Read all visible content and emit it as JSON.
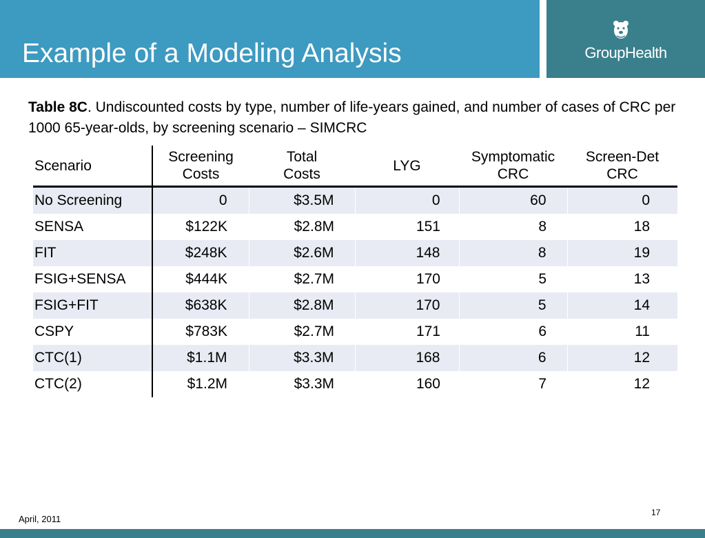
{
  "header": {
    "title": "Example of a Modeling Analysis",
    "logo_text": "GroupHealth",
    "logo_icon": "bear-emblem-icon",
    "colors": {
      "title_bar": "#3d9ac0",
      "logo_bar": "#3a7f8c",
      "row_shade": "#e8ebf3"
    }
  },
  "caption": {
    "bold": "Table 8C",
    "text": ". Undiscounted costs by type, number of life-years gained, and number of cases of CRC per 1000 65-year-olds, by screening scenario – SIMCRC"
  },
  "table": {
    "headers": {
      "scenario": "Scenario",
      "screening_costs": {
        "line1": "Screening",
        "line2": "Costs"
      },
      "total_costs": {
        "line1": "Total",
        "line2": "Costs"
      },
      "lyg": "LYG",
      "symptomatic_crc": {
        "line1": "Symptomatic",
        "line2": "CRC"
      },
      "screen_det_crc": {
        "line1": "Screen-Det",
        "line2": "CRC"
      }
    },
    "rows": [
      {
        "scenario": "No Screening",
        "screening_costs": "0",
        "total_costs": "$3.5M",
        "lyg": "0",
        "symptomatic": "60",
        "screen_det": "0"
      },
      {
        "scenario": "SENSA",
        "screening_costs": "$122K",
        "total_costs": "$2.8M",
        "lyg": "151",
        "symptomatic": "8",
        "screen_det": "18"
      },
      {
        "scenario": "FIT",
        "screening_costs": "$248K",
        "total_costs": "$2.6M",
        "lyg": "148",
        "symptomatic": "8",
        "screen_det": "19"
      },
      {
        "scenario": "FSIG+SENSA",
        "screening_costs": "$444K",
        "total_costs": "$2.7M",
        "lyg": "170",
        "symptomatic": "5",
        "screen_det": "13"
      },
      {
        "scenario": "FSIG+FIT",
        "screening_costs": "$638K",
        "total_costs": "$2.8M",
        "lyg": "170",
        "symptomatic": "5",
        "screen_det": "14"
      },
      {
        "scenario": "CSPY",
        "screening_costs": "$783K",
        "total_costs": "$2.7M",
        "lyg": "171",
        "symptomatic": "6",
        "screen_det": "11"
      },
      {
        "scenario": "CTC(1)",
        "screening_costs": "$1.1M",
        "total_costs": "$3.3M",
        "lyg": "168",
        "symptomatic": "6",
        "screen_det": "12"
      },
      {
        "scenario": "CTC(2)",
        "screening_costs": "$1.2M",
        "total_costs": "$3.3M",
        "lyg": "160",
        "symptomatic": "7",
        "screen_det": "12"
      }
    ]
  },
  "footer": {
    "date": "April, 2011",
    "page": "17"
  }
}
